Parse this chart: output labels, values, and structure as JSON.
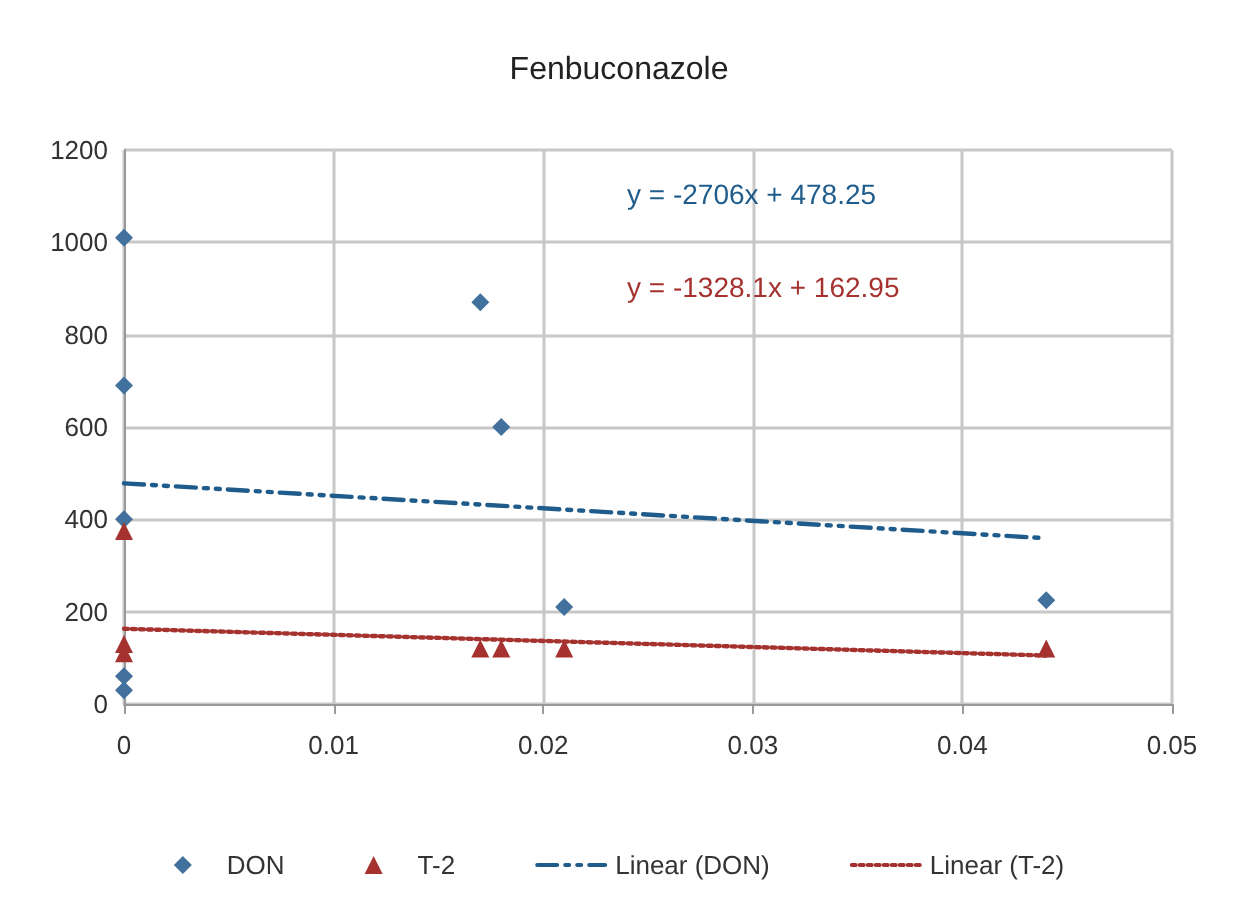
{
  "chart_data": {
    "type": "scatter",
    "title": "Fenbuconazole",
    "series": [
      {
        "name": "DON",
        "color": "#41719c",
        "marker": "diamond",
        "x": [
          0,
          0,
          0,
          0,
          0,
          0.017,
          0.018,
          0.021,
          0.044
        ],
        "values": [
          1010,
          690,
          400,
          60,
          30,
          870,
          600,
          210,
          225
        ]
      },
      {
        "name": "T-2",
        "color": "#a5322e",
        "marker": "triangle",
        "x": [
          0,
          0,
          0,
          0.017,
          0.018,
          0.021,
          0.044
        ],
        "values": [
          375,
          130,
          110,
          120,
          120,
          120,
          120
        ]
      },
      {
        "name": "Linear (DON)",
        "type": "line",
        "color": "#1f5c8b",
        "line_style": "dashed",
        "marker": "none",
        "x": [
          0,
          0.044
        ],
        "values": [
          478,
          359
        ]
      },
      {
        "name": "Linear (T-2)",
        "type": "line",
        "color": "#a5322e",
        "line_style": "dotted",
        "marker": "none",
        "x": [
          0,
          0.044
        ],
        "values": [
          163,
          105
        ]
      }
    ],
    "annotations": [
      "y = -2706x + 478.25",
      "y = -1328.1x + 162.95"
    ],
    "xlim": [
      0,
      0.05
    ],
    "xticks": [
      0,
      0.01,
      0.02,
      0.03,
      0.04,
      0.05
    ],
    "ylim": [
      0,
      1200
    ],
    "yticks": [
      0,
      200,
      400,
      600,
      800,
      1000,
      1200
    ],
    "grid": true,
    "legend": "bottom"
  }
}
